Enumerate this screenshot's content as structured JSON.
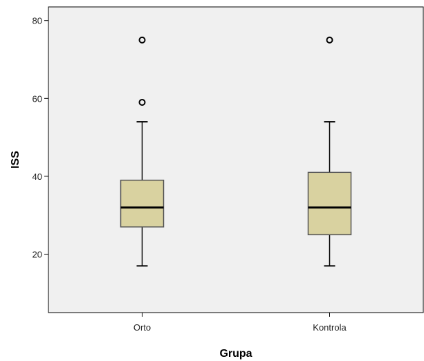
{
  "chart_data": {
    "type": "boxplot",
    "xlabel": "Grupa",
    "ylabel": "ISS",
    "ylim": [
      5,
      83.5
    ],
    "yticks": [
      20,
      40,
      60,
      80
    ],
    "grid": false,
    "categories": [
      "Orto",
      "Kontrola"
    ],
    "boxes": [
      {
        "category": "Orto",
        "whisker_low": 17,
        "q1": 27,
        "median": 32,
        "q3": 39,
        "whisker_high": 54,
        "outliers": [
          59,
          75
        ]
      },
      {
        "category": "Kontrola",
        "whisker_low": 17,
        "q1": 25,
        "median": 32,
        "q3": 41,
        "whisker_high": 54,
        "outliers": [
          75
        ]
      }
    ],
    "colors": {
      "plot_background": "#f0f0f0",
      "box_fill": "#d9d2a0",
      "box_stroke": "#555555"
    }
  }
}
